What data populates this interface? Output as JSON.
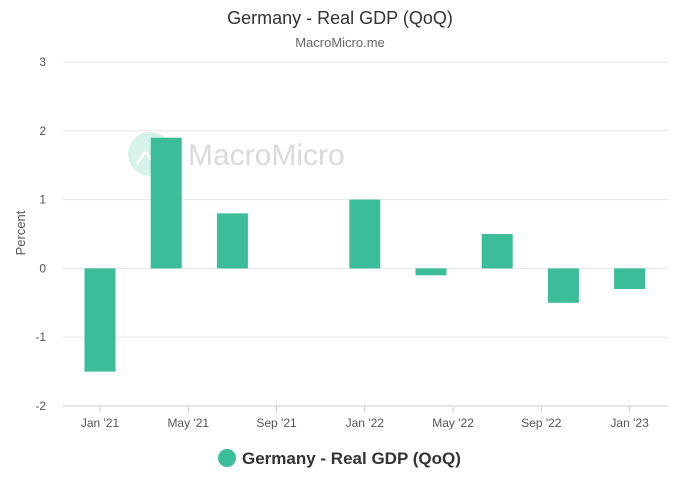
{
  "chart_data": {
    "type": "bar",
    "title": "Germany - Real GDP (QoQ)",
    "subtitle": "MacroMicro.me",
    "ylabel": "Percent",
    "xlabel": "",
    "ylim": [
      -2,
      3
    ],
    "y_ticks": [
      "-2",
      "-1",
      "0",
      "1",
      "2",
      "3"
    ],
    "x_tick_labels": [
      "Jan '21",
      "May '21",
      "Sep '21",
      "Jan '22",
      "May '22",
      "Sep '22",
      "Jan '23"
    ],
    "categories": [
      "2021 Q1",
      "2021 Q2",
      "2021 Q3",
      "2021 Q4",
      "2022 Q1",
      "2022 Q2",
      "2022 Q3",
      "2022 Q4",
      "2023 Q1"
    ],
    "values": [
      -1.5,
      1.9,
      0.8,
      0.0,
      1.0,
      -0.1,
      0.5,
      -0.5,
      -0.3
    ],
    "series_color": "#3bbd99",
    "grid": true,
    "legend": {
      "position": "bottom",
      "entries": [
        "Germany - Real GDP (QoQ)"
      ]
    },
    "watermark": "MacroMicro"
  }
}
